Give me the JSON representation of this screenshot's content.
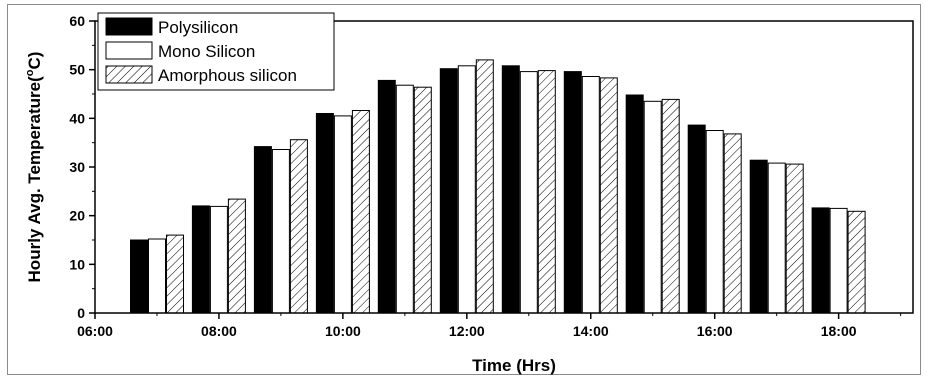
{
  "chart_data": {
    "type": "bar",
    "xlabel": "Time (Hrs)",
    "ylabel": "Hourly Avg. Temperature(",
    "ylabel_sup": "o",
    "ylabel_unit": "C)",
    "ylim": [
      0,
      60
    ],
    "yticks": [
      0,
      10,
      20,
      30,
      40,
      50,
      60
    ],
    "x_tick_labels": [
      "06:00",
      "08:00",
      "10:00",
      "12:00",
      "14:00",
      "16:00",
      "18:00"
    ],
    "x_tick_hours": [
      6,
      8,
      10,
      12,
      14,
      16,
      18
    ],
    "xlim_hours": [
      6,
      19.2
    ],
    "categories": [
      "07:00",
      "08:00",
      "09:00",
      "10:00",
      "11:00",
      "12:00",
      "13:00",
      "14:00",
      "15:00",
      "16:00",
      "17:00",
      "18:00"
    ],
    "category_hours": [
      7,
      8,
      9,
      10,
      11,
      12,
      13,
      14,
      15,
      16,
      17,
      18
    ],
    "legend_position": "top-left",
    "series": [
      {
        "name": "Polysilicon",
        "fill": "solid",
        "color": "#000000",
        "values": [
          15.0,
          22.0,
          34.2,
          41.0,
          47.8,
          50.2,
          50.8,
          49.6,
          44.8,
          38.6,
          31.4,
          21.6
        ]
      },
      {
        "name": "Mono Silicon",
        "fill": "none",
        "color": "#000000",
        "values": [
          15.2,
          21.9,
          33.6,
          40.5,
          46.8,
          50.8,
          49.6,
          48.6,
          43.5,
          37.5,
          30.8,
          21.5
        ]
      },
      {
        "name": "Amorphous silicon",
        "fill": "hatch",
        "color": "#000000",
        "values": [
          16.0,
          23.4,
          35.6,
          41.6,
          46.4,
          52.0,
          49.8,
          48.3,
          43.9,
          36.8,
          30.6,
          20.9
        ]
      }
    ]
  }
}
